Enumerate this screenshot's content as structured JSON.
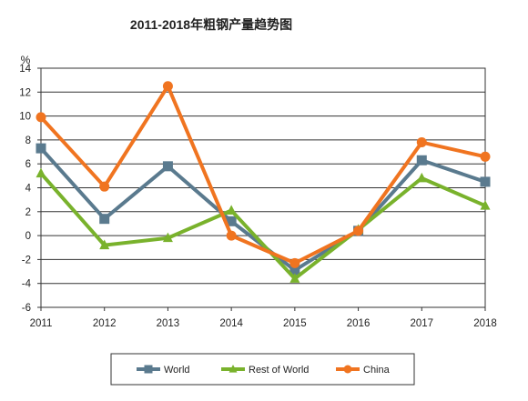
{
  "chart_data": {
    "type": "line",
    "title": "2011-2018年粗钢产量趋势图",
    "ylabel": "%",
    "xlabel": "",
    "x": [
      "2011",
      "2012",
      "2013",
      "2014",
      "2015",
      "2016",
      "2017",
      "2018"
    ],
    "ylim": [
      -6,
      14
    ],
    "yticks": [
      14,
      12,
      10,
      8,
      6,
      4,
      2,
      0,
      -2,
      -4,
      -6
    ],
    "grid": true,
    "legend_position": "bottom",
    "series": [
      {
        "name": "World",
        "color": "#5a7a8e",
        "marker": "square",
        "values": [
          7.3,
          1.4,
          5.8,
          1.2,
          -2.9,
          0.4,
          6.3,
          4.5
        ]
      },
      {
        "name": "Rest of World",
        "color": "#79b22c",
        "marker": "triangle",
        "values": [
          5.2,
          -0.8,
          -0.2,
          2.1,
          -3.6,
          0.5,
          4.8,
          2.5
        ]
      },
      {
        "name": "China",
        "color": "#f07420",
        "marker": "circle",
        "values": [
          9.9,
          4.1,
          12.5,
          0.0,
          -2.3,
          0.4,
          7.8,
          6.6
        ]
      }
    ]
  }
}
